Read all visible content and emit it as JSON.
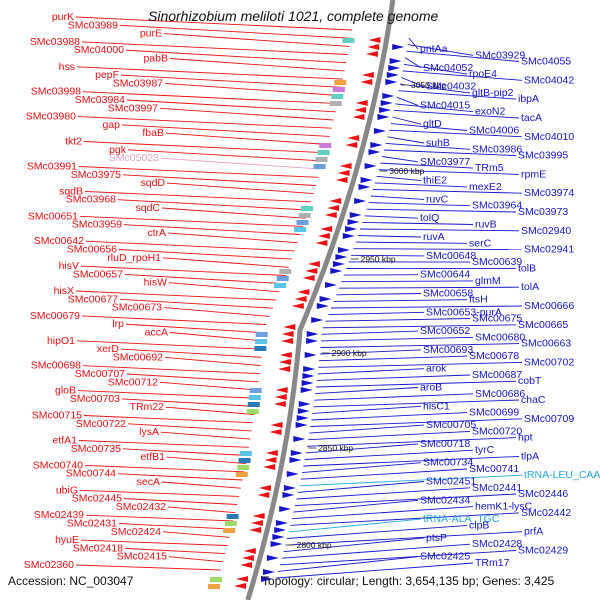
{
  "title": "Sinorhizobium meliloti 1021, complete genome",
  "footer": {
    "accession": "Accession: NC_003047",
    "topology": "Topology: circular; Length: 3,654,135 bp; Genes: 3,425"
  },
  "colors": {
    "reverse_strand": "#ee1111",
    "forward_strand": "#1515cc",
    "rna": "#22aadd",
    "pseudo": "#e8a0c8",
    "backbone": "#888888"
  },
  "kbp_marks": [
    {
      "label": "3050 kbp"
    },
    {
      "label": "3000 kbp"
    },
    {
      "label": "2950 kbp"
    },
    {
      "label": "2900 kbp"
    },
    {
      "label": "2850 kbp"
    },
    {
      "label": "2800 kbp"
    }
  ],
  "left_labels": [
    {
      "text": "purK",
      "kind": "gene"
    },
    {
      "text": "SMc03989",
      "kind": "gene"
    },
    {
      "text": "purE",
      "kind": "gene"
    },
    {
      "text": "SMc03988",
      "kind": "gene"
    },
    {
      "text": "SMc04000",
      "kind": "gene"
    },
    {
      "text": "pabB",
      "kind": "gene"
    },
    {
      "text": "hss",
      "kind": "gene"
    },
    {
      "text": "pepF",
      "kind": "gene"
    },
    {
      "text": "SMc03987",
      "kind": "gene"
    },
    {
      "text": "SMc03998",
      "kind": "gene"
    },
    {
      "text": "SMc03984",
      "kind": "gene"
    },
    {
      "text": "SMc03997",
      "kind": "gene"
    },
    {
      "text": "SMc03980",
      "kind": "gene"
    },
    {
      "text": "gap",
      "kind": "gene"
    },
    {
      "text": "fbaB",
      "kind": "gene"
    },
    {
      "text": "tkt2",
      "kind": "gene"
    },
    {
      "text": "pgk",
      "kind": "gene"
    },
    {
      "text": "SMc05023",
      "kind": "pseudo"
    },
    {
      "text": "SMc03991",
      "kind": "gene"
    },
    {
      "text": "SMc03975",
      "kind": "gene"
    },
    {
      "text": "sqdD",
      "kind": "gene"
    },
    {
      "text": "sqdB",
      "kind": "gene"
    },
    {
      "text": "SMc03968",
      "kind": "gene"
    },
    {
      "text": "sqdC",
      "kind": "gene"
    },
    {
      "text": "SMc00651",
      "kind": "gene"
    },
    {
      "text": "SMc03959",
      "kind": "gene"
    },
    {
      "text": "ctrA",
      "kind": "gene"
    },
    {
      "text": "SMc00642",
      "kind": "gene"
    },
    {
      "text": "SMc00656",
      "kind": "gene"
    },
    {
      "text": "rluD_rpoH1",
      "kind": "gene"
    },
    {
      "text": "hisV",
      "kind": "gene"
    },
    {
      "text": "SMc00657",
      "kind": "gene"
    },
    {
      "text": "hisW",
      "kind": "gene"
    },
    {
      "text": "hisX",
      "kind": "gene"
    },
    {
      "text": "SMc00677",
      "kind": "gene"
    },
    {
      "text": "SMc00673",
      "kind": "gene"
    },
    {
      "text": "SMc00679",
      "kind": "gene"
    },
    {
      "text": "lrp",
      "kind": "gene"
    },
    {
      "text": "accA",
      "kind": "gene"
    },
    {
      "text": "hipO1",
      "kind": "gene"
    },
    {
      "text": "xerD",
      "kind": "gene"
    },
    {
      "text": "SMc00692",
      "kind": "gene"
    },
    {
      "text": "SMc00698",
      "kind": "gene"
    },
    {
      "text": "SMc00707",
      "kind": "gene"
    },
    {
      "text": "SMc00712",
      "kind": "gene"
    },
    {
      "text": "gloB",
      "kind": "gene"
    },
    {
      "text": "SMc00703",
      "kind": "gene"
    },
    {
      "text": "TRm22",
      "kind": "gene"
    },
    {
      "text": "SMc00715",
      "kind": "gene"
    },
    {
      "text": "SMc00722",
      "kind": "gene"
    },
    {
      "text": "lysA",
      "kind": "gene"
    },
    {
      "text": "etfA1",
      "kind": "gene"
    },
    {
      "text": "SMc00735",
      "kind": "gene"
    },
    {
      "text": "etfB1",
      "kind": "gene"
    },
    {
      "text": "SMc00740",
      "kind": "gene"
    },
    {
      "text": "SMc00744",
      "kind": "gene"
    },
    {
      "text": "secA",
      "kind": "gene"
    },
    {
      "text": "ubiG",
      "kind": "gene"
    },
    {
      "text": "SMc02445",
      "kind": "gene"
    },
    {
      "text": "SMc02432",
      "kind": "gene"
    },
    {
      "text": "SMc02439",
      "kind": "gene"
    },
    {
      "text": "SMc02431",
      "kind": "gene"
    },
    {
      "text": "SMc02424",
      "kind": "gene"
    },
    {
      "text": "hyuE",
      "kind": "gene"
    },
    {
      "text": "SMc02418",
      "kind": "gene"
    },
    {
      "text": "SMc02415",
      "kind": "gene"
    },
    {
      "text": "SMc02360",
      "kind": "gene"
    }
  ],
  "right_labels": [
    {
      "text": "pntAa",
      "kind": "gene"
    },
    {
      "text": "SMc03929",
      "kind": "gene"
    },
    {
      "text": "SMc04055",
      "kind": "gene"
    },
    {
      "text": "SMc04052",
      "kind": "gene"
    },
    {
      "text": "rpoE4",
      "kind": "gene"
    },
    {
      "text": "SMc04042",
      "kind": "gene"
    },
    {
      "text": "SMc04032",
      "kind": "gene"
    },
    {
      "text": "gltB-pip2",
      "kind": "gene"
    },
    {
      "text": "ibpA",
      "kind": "gene"
    },
    {
      "text": "SMc04015",
      "kind": "gene"
    },
    {
      "text": "exoN2",
      "kind": "gene"
    },
    {
      "text": "tacA",
      "kind": "gene"
    },
    {
      "text": "gltD",
      "kind": "gene"
    },
    {
      "text": "SMc04006",
      "kind": "gene"
    },
    {
      "text": "SMc04010",
      "kind": "gene"
    },
    {
      "text": "suhB",
      "kind": "gene"
    },
    {
      "text": "SMc03986",
      "kind": "gene"
    },
    {
      "text": "SMc03995",
      "kind": "gene"
    },
    {
      "text": "SMc03977",
      "kind": "gene"
    },
    {
      "text": "TRm5",
      "kind": "gene"
    },
    {
      "text": "rpmE",
      "kind": "gene"
    },
    {
      "text": "thiE2",
      "kind": "gene"
    },
    {
      "text": "mexE2",
      "kind": "gene"
    },
    {
      "text": "SMc03974",
      "kind": "gene"
    },
    {
      "text": "ruvC",
      "kind": "gene"
    },
    {
      "text": "SMc03964",
      "kind": "gene"
    },
    {
      "text": "SMc03973",
      "kind": "gene"
    },
    {
      "text": "tolQ",
      "kind": "gene"
    },
    {
      "text": "ruvB",
      "kind": "gene"
    },
    {
      "text": "SMc02940",
      "kind": "gene"
    },
    {
      "text": "ruvA",
      "kind": "gene"
    },
    {
      "text": "serC",
      "kind": "gene"
    },
    {
      "text": "SMc02941",
      "kind": "gene"
    },
    {
      "text": "SMc00648",
      "kind": "gene"
    },
    {
      "text": "SMc00639",
      "kind": "gene"
    },
    {
      "text": "tolB",
      "kind": "gene"
    },
    {
      "text": "SMc00644",
      "kind": "gene"
    },
    {
      "text": "glmM",
      "kind": "gene"
    },
    {
      "text": "tolA",
      "kind": "gene"
    },
    {
      "text": "SMc00658",
      "kind": "gene"
    },
    {
      "text": "ftsH",
      "kind": "gene"
    },
    {
      "text": "SMc00666",
      "kind": "gene"
    },
    {
      "text": "SMc00653-purA",
      "kind": "gene"
    },
    {
      "text": "SMc00675",
      "kind": "gene"
    },
    {
      "text": "SMc00665",
      "kind": "gene"
    },
    {
      "text": "SMc00652",
      "kind": "gene"
    },
    {
      "text": "SMc00680",
      "kind": "gene"
    },
    {
      "text": "SMc00663",
      "kind": "gene"
    },
    {
      "text": "SMc00693",
      "kind": "gene"
    },
    {
      "text": "SMc00678",
      "kind": "gene"
    },
    {
      "text": "SMc00702",
      "kind": "gene"
    },
    {
      "text": "arok",
      "kind": "gene"
    },
    {
      "text": "SMc00687",
      "kind": "gene"
    },
    {
      "text": "cobT",
      "kind": "gene"
    },
    {
      "text": "aroB",
      "kind": "gene"
    },
    {
      "text": "SMc00686",
      "kind": "gene"
    },
    {
      "text": "chaC",
      "kind": "gene"
    },
    {
      "text": "hisC1",
      "kind": "gene"
    },
    {
      "text": "SMc00699",
      "kind": "gene"
    },
    {
      "text": "SMc00709",
      "kind": "gene"
    },
    {
      "text": "SMc00705",
      "kind": "gene"
    },
    {
      "text": "SMc00720",
      "kind": "gene"
    },
    {
      "text": "hpt",
      "kind": "gene"
    },
    {
      "text": "SMc00718",
      "kind": "gene"
    },
    {
      "text": "tyrC",
      "kind": "gene"
    },
    {
      "text": "tlpA",
      "kind": "gene"
    },
    {
      "text": "SMc00734",
      "kind": "gene"
    },
    {
      "text": "SMc00741",
      "kind": "gene"
    },
    {
      "text": "tRNA-LEU_CAA",
      "kind": "rna"
    },
    {
      "text": "SMc02451",
      "kind": "gene"
    },
    {
      "text": "SMc02441",
      "kind": "gene"
    },
    {
      "text": "SMc02446",
      "kind": "gene"
    },
    {
      "text": "SMc02434",
      "kind": "gene"
    },
    {
      "text": "hemK1-lysC",
      "kind": "gene"
    },
    {
      "text": "SMc02442",
      "kind": "gene"
    },
    {
      "text": "tRNA-ALA_TGC",
      "kind": "rna"
    },
    {
      "text": "clpB",
      "kind": "gene"
    },
    {
      "text": "prfA",
      "kind": "gene"
    },
    {
      "text": "ptsP",
      "kind": "gene"
    },
    {
      "text": "SMc02428",
      "kind": "gene"
    },
    {
      "text": "SMc02429",
      "kind": "gene"
    },
    {
      "text": "SMc02425",
      "kind": "gene"
    },
    {
      "text": "TRm17",
      "kind": "gene"
    }
  ]
}
